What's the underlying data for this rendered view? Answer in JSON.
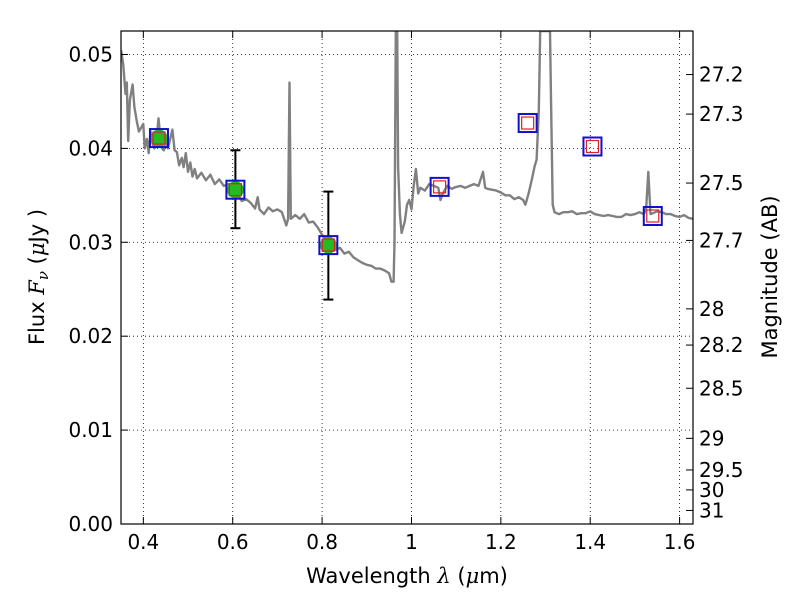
{
  "chart_data": {
    "type": "line",
    "xlabel": {
      "prefix": "Wavelength  ",
      "symbol": "λ",
      "unit_open": " (",
      "unit_mu": "μ",
      "unit_close": "m)"
    },
    "ylabel": {
      "prefix": "Flux  ",
      "symbol": "F",
      "subscript": "ν",
      "unit_open": "  (",
      "unit_mu": "μ",
      "unit_close": "Jy )"
    },
    "ylabel_right": "Magnitude (AB)",
    "xlim": [
      0.35,
      1.63
    ],
    "ylim": [
      0.0,
      0.0525
    ],
    "grid": true,
    "x_ticks": [
      {
        "value": 0.4,
        "label": "0.4"
      },
      {
        "value": 0.6,
        "label": "0.6"
      },
      {
        "value": 0.8,
        "label": "0.8"
      },
      {
        "value": 1.0,
        "label": "1"
      },
      {
        "value": 1.2,
        "label": "1.2"
      },
      {
        "value": 1.4,
        "label": "1.4"
      },
      {
        "value": 1.6,
        "label": "1.6"
      }
    ],
    "y_ticks": [
      {
        "value": 0.0,
        "label": "0.00"
      },
      {
        "value": 0.01,
        "label": "0.01"
      },
      {
        "value": 0.02,
        "label": "0.02"
      },
      {
        "value": 0.03,
        "label": "0.03"
      },
      {
        "value": 0.04,
        "label": "0.04"
      },
      {
        "value": 0.05,
        "label": "0.05"
      }
    ],
    "mag_ticks": [
      {
        "value": 27.2,
        "label": "27.2"
      },
      {
        "value": 27.3,
        "label": "27.3"
      },
      {
        "value": 27.5,
        "label": "27.5"
      },
      {
        "value": 27.7,
        "label": "27.7"
      },
      {
        "value": 28.0,
        "label": "28"
      },
      {
        "value": 28.2,
        "label": "28.2"
      },
      {
        "value": 28.5,
        "label": "28.5"
      },
      {
        "value": 29.0,
        "label": "29"
      },
      {
        "value": 29.5,
        "label": "29.5"
      },
      {
        "value": 30.0,
        "label": "30"
      },
      {
        "value": 31.0,
        "label": "31"
      }
    ],
    "series": [
      {
        "name": "model-spectrum",
        "color": "#808080",
        "points": [
          [
            0.35,
            0.0505
          ],
          [
            0.355,
            0.049
          ],
          [
            0.36,
            0.0458
          ],
          [
            0.363,
            0.047
          ],
          [
            0.366,
            0.0408
          ],
          [
            0.37,
            0.0452
          ],
          [
            0.373,
            0.046
          ],
          [
            0.376,
            0.0468
          ],
          [
            0.38,
            0.0444
          ],
          [
            0.385,
            0.043
          ],
          [
            0.39,
            0.0418
          ],
          [
            0.395,
            0.0422
          ],
          [
            0.4,
            0.0426
          ],
          [
            0.403,
            0.04
          ],
          [
            0.408,
            0.041
          ],
          [
            0.412,
            0.0395
          ],
          [
            0.416,
            0.0418
          ],
          [
            0.42,
            0.0406
          ],
          [
            0.425,
            0.04
          ],
          [
            0.43,
            0.0412
          ],
          [
            0.434,
            0.0432
          ],
          [
            0.438,
            0.0412
          ],
          [
            0.442,
            0.04
          ],
          [
            0.446,
            0.0398
          ],
          [
            0.45,
            0.0412
          ],
          [
            0.455,
            0.04
          ],
          [
            0.46,
            0.041
          ],
          [
            0.465,
            0.042
          ],
          [
            0.47,
            0.0398
          ],
          [
            0.475,
            0.0396
          ],
          [
            0.48,
            0.0382
          ],
          [
            0.486,
            0.039
          ],
          [
            0.49,
            0.038
          ],
          [
            0.495,
            0.0395
          ],
          [
            0.5,
            0.0375
          ],
          [
            0.505,
            0.0385
          ],
          [
            0.51,
            0.037
          ],
          [
            0.515,
            0.0378
          ],
          [
            0.52,
            0.0368
          ],
          [
            0.53,
            0.0374
          ],
          [
            0.54,
            0.0366
          ],
          [
            0.55,
            0.0372
          ],
          [
            0.56,
            0.0362
          ],
          [
            0.57,
            0.0367
          ],
          [
            0.58,
            0.036
          ],
          [
            0.59,
            0.0362
          ],
          [
            0.6,
            0.0356
          ],
          [
            0.61,
            0.0352
          ],
          [
            0.62,
            0.0344
          ],
          [
            0.63,
            0.0346
          ],
          [
            0.64,
            0.0342
          ],
          [
            0.65,
            0.0336
          ],
          [
            0.656,
            0.0348
          ],
          [
            0.66,
            0.0335
          ],
          [
            0.67,
            0.033
          ],
          [
            0.68,
            0.0337
          ],
          [
            0.69,
            0.0333
          ],
          [
            0.7,
            0.0335
          ],
          [
            0.71,
            0.0332
          ],
          [
            0.72,
            0.0318
          ],
          [
            0.724,
            0.0325
          ],
          [
            0.727,
            0.047
          ],
          [
            0.73,
            0.0325
          ],
          [
            0.74,
            0.0329
          ],
          [
            0.75,
            0.0325
          ],
          [
            0.76,
            0.033
          ],
          [
            0.77,
            0.0321
          ],
          [
            0.78,
            0.0322
          ],
          [
            0.79,
            0.0316
          ],
          [
            0.8,
            0.0308
          ],
          [
            0.81,
            0.03
          ],
          [
            0.82,
            0.0296
          ],
          [
            0.83,
            0.0292
          ],
          [
            0.84,
            0.0294
          ],
          [
            0.85,
            0.0288
          ],
          [
            0.86,
            0.029
          ],
          [
            0.87,
            0.0284
          ],
          [
            0.88,
            0.0281
          ],
          [
            0.89,
            0.0278
          ],
          [
            0.9,
            0.0276
          ],
          [
            0.91,
            0.0275
          ],
          [
            0.92,
            0.0272
          ],
          [
            0.93,
            0.0272
          ],
          [
            0.94,
            0.027
          ],
          [
            0.95,
            0.0267
          ],
          [
            0.955,
            0.0258
          ],
          [
            0.96,
            0.0258
          ],
          [
            0.962,
            0.03
          ],
          [
            0.965,
            0.0525
          ],
          [
            0.968,
            0.0525
          ],
          [
            0.97,
            0.038
          ],
          [
            0.974,
            0.033
          ],
          [
            0.978,
            0.031
          ],
          [
            0.985,
            0.0322
          ],
          [
            0.99,
            0.034
          ],
          [
            0.995,
            0.0345
          ],
          [
            1.0,
            0.0335
          ],
          [
            1.005,
            0.036
          ],
          [
            1.01,
            0.0378
          ],
          [
            1.015,
            0.0352
          ],
          [
            1.02,
            0.0358
          ],
          [
            1.03,
            0.0355
          ],
          [
            1.04,
            0.0362
          ],
          [
            1.05,
            0.036
          ],
          [
            1.06,
            0.0358
          ],
          [
            1.065,
            0.0345
          ],
          [
            1.07,
            0.0352
          ],
          [
            1.08,
            0.036
          ],
          [
            1.09,
            0.0357
          ],
          [
            1.1,
            0.0359
          ],
          [
            1.11,
            0.036
          ],
          [
            1.12,
            0.0358
          ],
          [
            1.13,
            0.036
          ],
          [
            1.14,
            0.0362
          ],
          [
            1.15,
            0.036
          ],
          [
            1.16,
            0.0375
          ],
          [
            1.165,
            0.0358
          ],
          [
            1.17,
            0.0357
          ],
          [
            1.18,
            0.0356
          ],
          [
            1.19,
            0.0355
          ],
          [
            1.2,
            0.0353
          ],
          [
            1.21,
            0.035
          ],
          [
            1.22,
            0.035
          ],
          [
            1.23,
            0.0346
          ],
          [
            1.24,
            0.0348
          ],
          [
            1.25,
            0.0345
          ],
          [
            1.255,
            0.034
          ],
          [
            1.262,
            0.0352
          ],
          [
            1.27,
            0.0368
          ],
          [
            1.275,
            0.038
          ],
          [
            1.28,
            0.0388
          ],
          [
            1.285,
            0.044
          ],
          [
            1.288,
            0.0525
          ],
          [
            1.31,
            0.0525
          ],
          [
            1.312,
            0.046
          ],
          [
            1.316,
            0.034
          ],
          [
            1.32,
            0.0332
          ],
          [
            1.33,
            0.033
          ],
          [
            1.34,
            0.0332
          ],
          [
            1.35,
            0.0332
          ],
          [
            1.36,
            0.0333
          ],
          [
            1.37,
            0.033
          ],
          [
            1.38,
            0.0331
          ],
          [
            1.39,
            0.0331
          ],
          [
            1.4,
            0.0333
          ],
          [
            1.41,
            0.033
          ],
          [
            1.42,
            0.0329
          ],
          [
            1.43,
            0.0328
          ],
          [
            1.44,
            0.0329
          ],
          [
            1.45,
            0.0328
          ],
          [
            1.46,
            0.0327
          ],
          [
            1.47,
            0.0327
          ],
          [
            1.48,
            0.033
          ],
          [
            1.49,
            0.0329
          ],
          [
            1.5,
            0.033
          ],
          [
            1.51,
            0.0332
          ],
          [
            1.52,
            0.033
          ],
          [
            1.525,
            0.0335
          ],
          [
            1.53,
            0.0375
          ],
          [
            1.535,
            0.033
          ],
          [
            1.54,
            0.0331
          ],
          [
            1.55,
            0.0333
          ],
          [
            1.56,
            0.0332
          ],
          [
            1.57,
            0.033
          ],
          [
            1.58,
            0.033
          ],
          [
            1.59,
            0.0328
          ],
          [
            1.6,
            0.0327
          ],
          [
            1.61,
            0.0329
          ],
          [
            1.62,
            0.0326
          ],
          [
            1.63,
            0.0325
          ]
        ]
      }
    ],
    "observed_points": [
      {
        "x": 0.435,
        "y": 0.0411,
        "err": null
      },
      {
        "x": 0.606,
        "y": 0.0356,
        "err": [
          0.0315,
          0.0398
        ]
      },
      {
        "x": 0.814,
        "y": 0.0297,
        "err": [
          0.0239,
          0.0354
        ]
      }
    ],
    "model_boxes": [
      {
        "x": 0.435,
        "y": 0.0411
      },
      {
        "x": 0.606,
        "y": 0.0356
      },
      {
        "x": 0.814,
        "y": 0.0297
      },
      {
        "x": 1.063,
        "y": 0.0359
      },
      {
        "x": 1.26,
        "y": 0.0427
      },
      {
        "x": 1.405,
        "y": 0.0402
      },
      {
        "x": 1.54,
        "y": 0.0328
      }
    ],
    "colors": {
      "spectrum": "#808080",
      "observed": "#22bb22",
      "box_outer": "#1111cc",
      "box_inner": "#dd2222",
      "errorbar": "#000000"
    }
  }
}
